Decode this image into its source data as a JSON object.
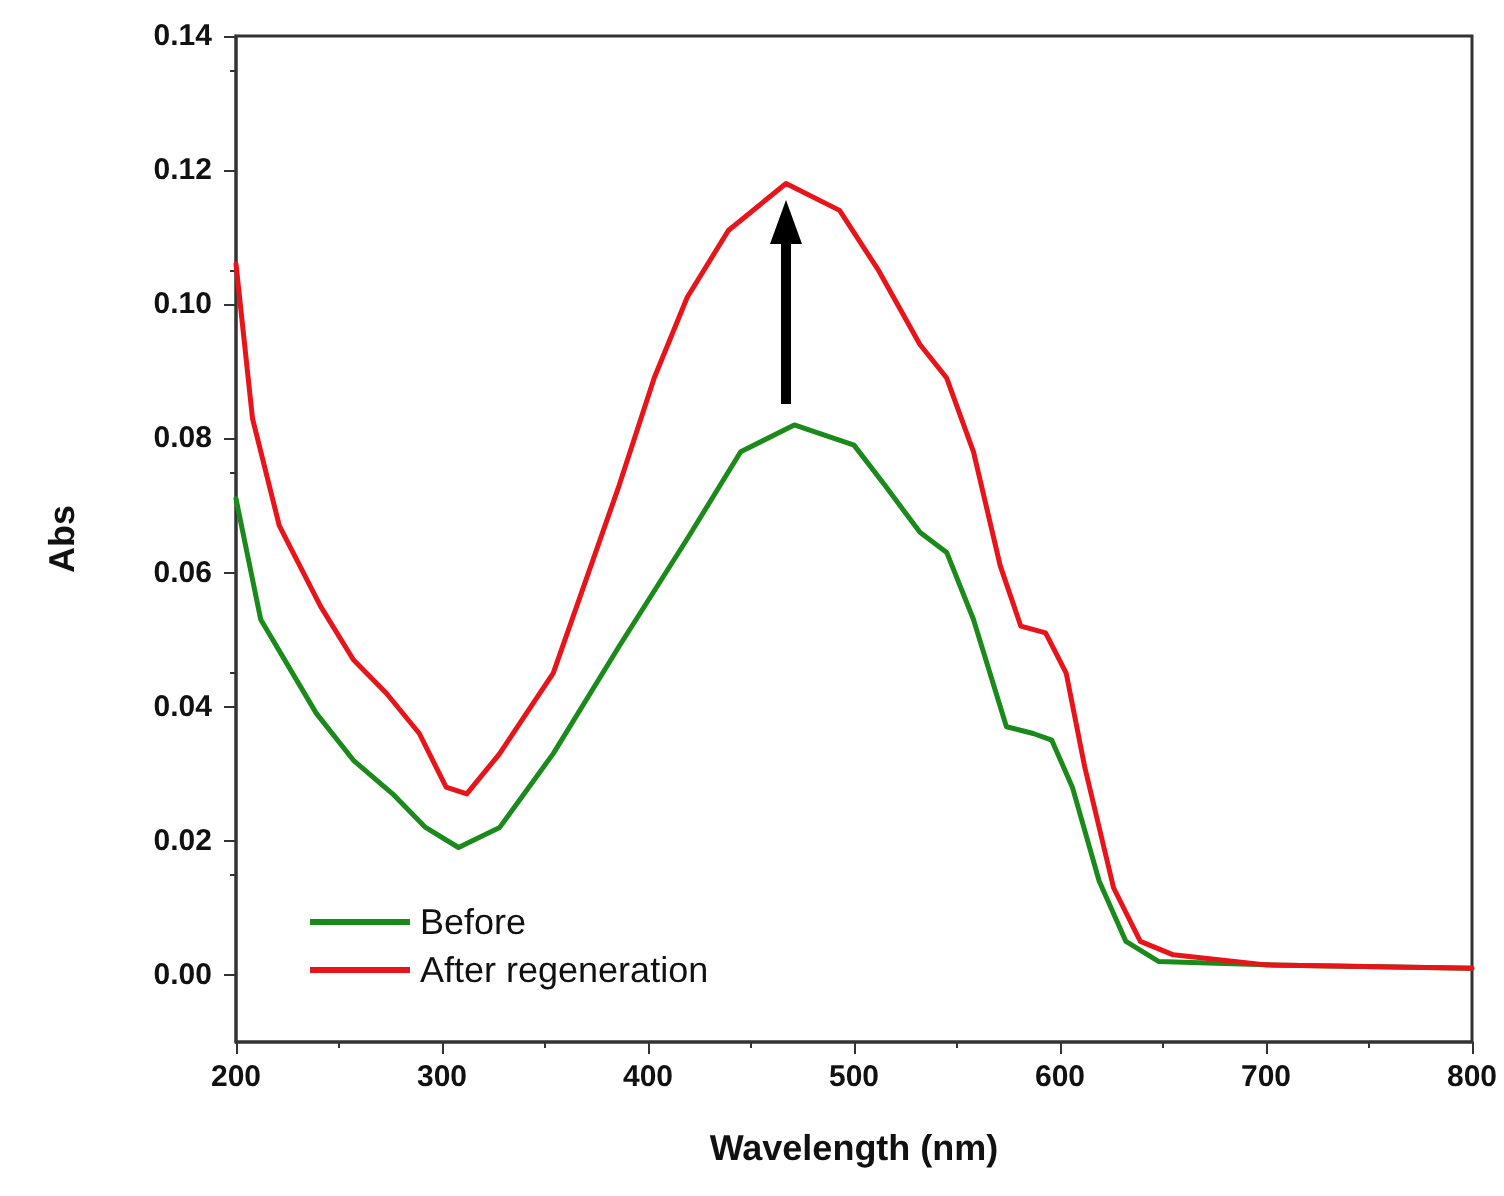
{
  "chart_data": {
    "type": "line",
    "xlabel": "Wavelength (nm)",
    "ylabel": "Abs",
    "xlim": [
      200,
      800
    ],
    "xticks": [
      200,
      300,
      400,
      500,
      600,
      700,
      800
    ],
    "ylim": [
      -0.01,
      0.14
    ],
    "yticks": [
      {
        "value": 0,
        "label": "0.00"
      },
      {
        "value": 0.02,
        "label": "0.02"
      },
      {
        "value": 0.04,
        "label": "0.04"
      },
      {
        "value": 0.06,
        "label": "0.06"
      },
      {
        "value": 0.08,
        "label": "0.08"
      },
      {
        "value": 0.1,
        "label": "0.10"
      },
      {
        "value": 0.12,
        "label": "0.12"
      },
      {
        "value": 0.14,
        "label": "0.14"
      }
    ],
    "legend": "bottom left",
    "grid": false,
    "marker": "none",
    "line_style": "solid",
    "series": [
      {
        "name": "Before",
        "color": "#1a8a1a",
        "x": [
          200,
          212,
          239,
          257,
          276,
          292,
          308,
          328,
          354,
          386,
          419,
          445,
          471,
          500,
          515,
          532,
          545,
          558,
          574,
          587,
          596,
          606,
          619,
          632,
          648,
          700,
          800
        ],
        "values": [
          0.071,
          0.053,
          0.039,
          0.032,
          0.027,
          0.022,
          0.019,
          0.022,
          0.033,
          0.049,
          0.065,
          0.078,
          0.082,
          0.079,
          0.073,
          0.066,
          0.063,
          0.053,
          0.037,
          0.036,
          0.035,
          0.028,
          0.014,
          0.005,
          0.002,
          0.0015,
          0.001
        ]
      },
      {
        "name": "After regeneration",
        "color": "#e8141a",
        "x": [
          200,
          208,
          221,
          241,
          257,
          273,
          289,
          302,
          312,
          328,
          354,
          386,
          403,
          419,
          439,
          467,
          493,
          512,
          532,
          545,
          558,
          571,
          581,
          593,
          603,
          612,
          626,
          639,
          655,
          700,
          800
        ],
        "values": [
          0.106,
          0.083,
          0.067,
          0.055,
          0.047,
          0.042,
          0.036,
          0.028,
          0.027,
          0.033,
          0.045,
          0.073,
          0.089,
          0.101,
          0.111,
          0.118,
          0.114,
          0.105,
          0.094,
          0.089,
          0.078,
          0.061,
          0.052,
          0.051,
          0.045,
          0.031,
          0.013,
          0.005,
          0.003,
          0.0015,
          0.001
        ]
      }
    ]
  }
}
